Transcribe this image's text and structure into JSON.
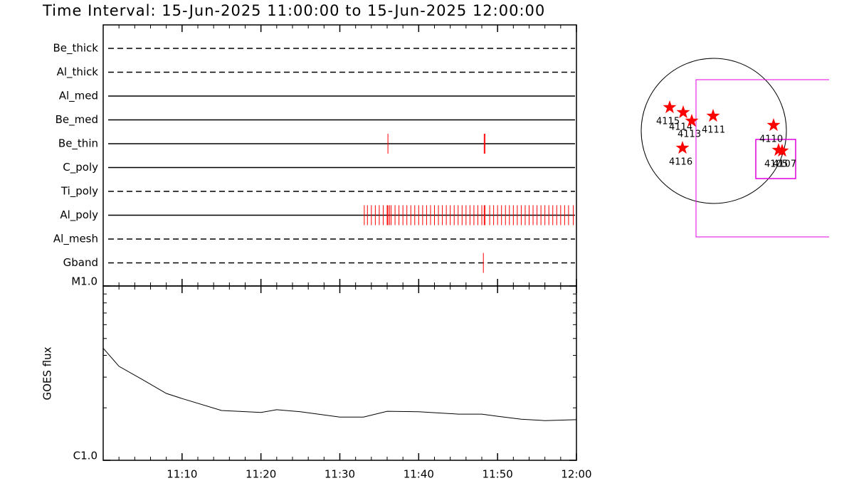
{
  "title": "Time Interval: 15-Jun-2025 11:00:00 to 15-Jun-2025 12:00:00",
  "chart_data": [
    {
      "type": "timeline",
      "xlim": [
        0,
        60
      ],
      "xticks": [
        {
          "value": 10,
          "label": "11:10"
        },
        {
          "value": 20,
          "label": "11:20"
        },
        {
          "value": 30,
          "label": "11:30"
        },
        {
          "value": 40,
          "label": "11:40"
        },
        {
          "value": 50,
          "label": "11:50"
        },
        {
          "value": 60,
          "label": "12:00"
        }
      ],
      "xminor": [
        2,
        4,
        6,
        8,
        12,
        14,
        16,
        18,
        22,
        24,
        26,
        28,
        32,
        34,
        36,
        38,
        42,
        44,
        46,
        48,
        52,
        54,
        56,
        58
      ],
      "mark_color": "#ff0000",
      "series": [
        {
          "name": "Be_thick",
          "line_style": "dashed",
          "values": []
        },
        {
          "name": "Al_thick",
          "line_style": "dashed",
          "values": []
        },
        {
          "name": "Al_med",
          "line_style": "solid",
          "values": []
        },
        {
          "name": "Be_med",
          "line_style": "solid",
          "values": []
        },
        {
          "name": "Be_thin",
          "line_style": "solid",
          "values": [
            36.1,
            48.3,
            48.4
          ]
        },
        {
          "name": "C_poly",
          "line_style": "solid",
          "values": []
        },
        {
          "name": "Ti_poly",
          "line_style": "dashed",
          "values": []
        },
        {
          "name": "Al_poly",
          "line_style": "solid",
          "values": [
            33.1,
            33.5,
            34.0,
            34.5,
            35.0,
            35.5,
            36.0,
            36.1,
            36.3,
            36.5,
            37.0,
            37.5,
            38.0,
            38.5,
            39.0,
            39.5,
            40.0,
            40.5,
            41.0,
            41.5,
            42.0,
            42.5,
            43.0,
            43.5,
            44.0,
            44.5,
            45.0,
            45.5,
            46.0,
            46.5,
            47.0,
            47.5,
            48.0,
            48.3,
            48.4,
            49.0,
            49.5,
            50.0,
            50.5,
            51.0,
            51.5,
            52.0,
            52.5,
            53.0,
            53.5,
            54.0,
            54.5,
            55.0,
            55.5,
            56.0,
            56.5,
            57.0,
            57.5,
            58.0,
            58.5,
            59.0,
            59.6
          ]
        },
        {
          "name": "Al_mesh",
          "line_style": "dashed",
          "values": []
        },
        {
          "name": "Gband",
          "line_style": "dashed",
          "values": [
            48.2
          ]
        }
      ]
    },
    {
      "type": "line",
      "y_label": "GOES flux",
      "log_scale": true,
      "color": "#000000",
      "xlim": [
        0,
        60
      ],
      "xticks": [
        {
          "value": 10,
          "label": "11:10"
        },
        {
          "value": 20,
          "label": "11:20"
        },
        {
          "value": 30,
          "label": "11:30"
        },
        {
          "value": 40,
          "label": "11:40"
        },
        {
          "value": 50,
          "label": "11:50"
        },
        {
          "value": 60,
          "label": "12:00"
        }
      ],
      "xminor": [
        2,
        4,
        6,
        8,
        12,
        14,
        16,
        18,
        22,
        24,
        26,
        28,
        32,
        34,
        36,
        38,
        42,
        44,
        46,
        48,
        52,
        54,
        56,
        58
      ],
      "ylim": [
        1e-06,
        1e-05
      ],
      "yticks": [
        {
          "value": 1e-06,
          "label": "C1.0"
        },
        {
          "value": 1e-05,
          "label": "M1.0"
        }
      ],
      "yminor": [
        2e-06,
        3e-06,
        4e-06,
        5e-06,
        6e-06,
        7e-06,
        8e-06,
        9e-06
      ],
      "x": [
        0,
        2,
        5,
        8,
        10,
        15,
        20,
        22,
        25,
        30,
        33,
        36,
        40,
        45,
        48,
        50,
        53,
        56,
        60
      ],
      "values": [
        4.4e-06,
        3.46e-06,
        2.9e-06,
        2.42e-06,
        2.26e-06,
        1.93e-06,
        1.88e-06,
        1.95e-06,
        1.9e-06,
        1.77e-06,
        1.77e-06,
        1.91e-06,
        1.9e-06,
        1.84e-06,
        1.84e-06,
        1.79e-06,
        1.72e-06,
        1.69e-06,
        1.71e-06
      ]
    },
    {
      "type": "map",
      "regions": [
        "4115",
        "4114",
        "4113",
        "4111",
        "4116",
        "4110",
        "4105",
        "4107"
      ]
    }
  ]
}
